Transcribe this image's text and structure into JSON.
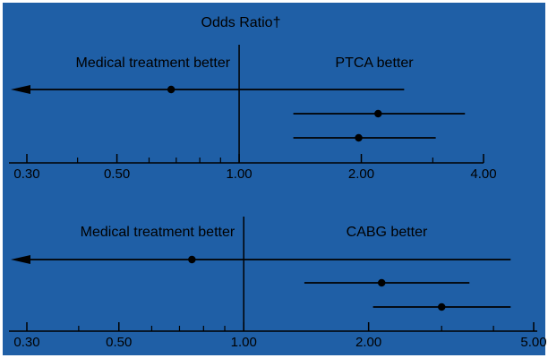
{
  "title": "Odds Ratio†",
  "colors": {
    "background": "#1f5fa6",
    "ink": "#000000"
  },
  "chart_data": [
    {
      "type": "forest",
      "scale": "log",
      "xlim": [
        0.3,
        4.0
      ],
      "ticks": [
        "0.30",
        "0.50",
        "1.00",
        "2.00",
        "4.00"
      ],
      "left_label": "Medical treatment better",
      "right_label": "PTCA better",
      "reference_line": 1.0,
      "rows": [
        {
          "estimate": 0.68,
          "lower": 0.28,
          "upper": 2.55,
          "lower_arrow": true
        },
        {
          "estimate": 2.2,
          "lower": 1.36,
          "upper": 3.6,
          "lower_arrow": false
        },
        {
          "estimate": 1.97,
          "lower": 1.36,
          "upper": 3.05,
          "lower_arrow": false
        }
      ]
    },
    {
      "type": "forest",
      "scale": "log",
      "xlim": [
        0.3,
        5.0
      ],
      "ticks": [
        "0.30",
        "0.50",
        "1.00",
        "2.00",
        "5.00"
      ],
      "left_label": "Medical treatment better",
      "right_label": "CABG better",
      "reference_line": 1.0,
      "rows": [
        {
          "estimate": 0.75,
          "lower": 0.28,
          "upper": 4.4,
          "lower_arrow": true
        },
        {
          "estimate": 2.15,
          "lower": 1.4,
          "upper": 3.5,
          "lower_arrow": false
        },
        {
          "estimate": 3.0,
          "lower": 2.05,
          "upper": 4.4,
          "lower_arrow": false
        }
      ]
    }
  ]
}
